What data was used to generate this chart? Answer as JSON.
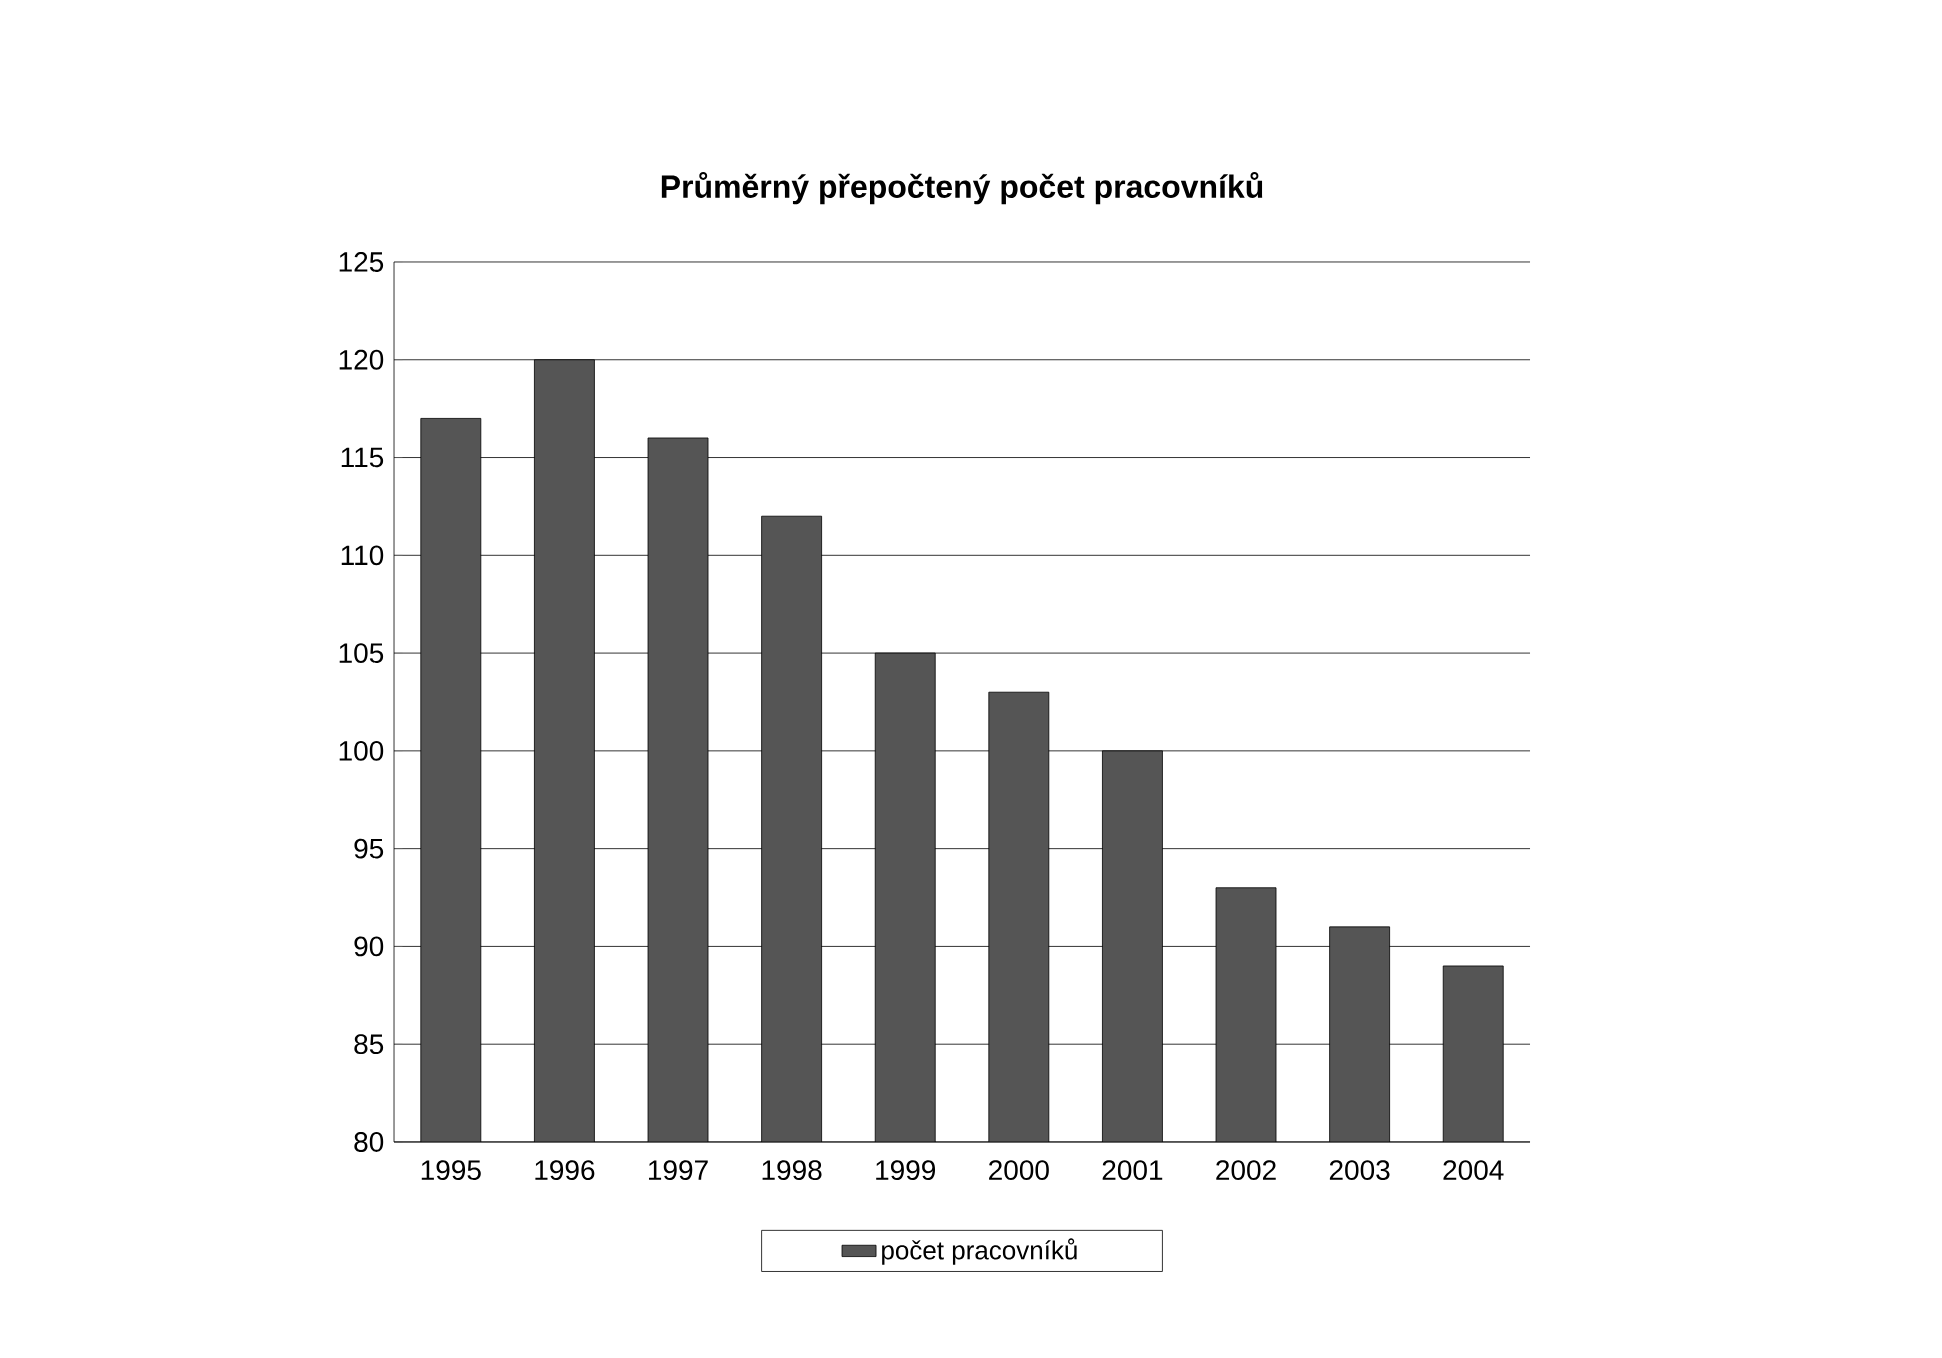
{
  "chart_data": {
    "type": "bar",
    "title": "Průměrný přepočtený počet pracovníků",
    "categories": [
      "1995",
      "1996",
      "1997",
      "1998",
      "1999",
      "2000",
      "2001",
      "2002",
      "2003",
      "2004"
    ],
    "series": [
      {
        "name": "počet pracovníků",
        "color": "#555555",
        "values": [
          117,
          120,
          116,
          112,
          105,
          103,
          100,
          93,
          91,
          89
        ]
      }
    ],
    "ylim": [
      80,
      125
    ],
    "yticks": [
      80,
      85,
      90,
      95,
      100,
      105,
      110,
      115,
      120,
      125
    ],
    "grid": "y",
    "legend": "bottom"
  }
}
